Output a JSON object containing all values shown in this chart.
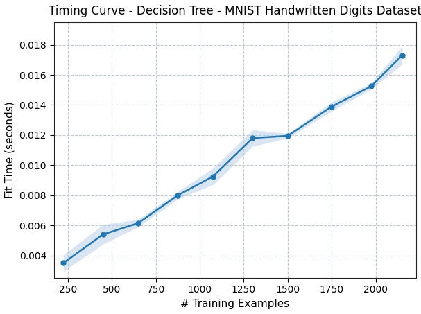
{
  "title": "Timing Curve - Decision Tree - MNIST Handwritten Digits Dataset",
  "xlabel": "# Training Examples",
  "ylabel": "Fit Time (seconds)",
  "x": [
    225,
    450,
    650,
    875,
    1075,
    1300,
    1500,
    1750,
    1975,
    2150
  ],
  "y": [
    0.0035,
    0.0054,
    0.00615,
    0.008,
    0.00925,
    0.0118,
    0.01195,
    0.0139,
    0.01525,
    0.0173
  ],
  "y_err": [
    0.00055,
    0.00065,
    0.00025,
    0.00025,
    0.00055,
    0.00055,
    0.00015,
    0.0003,
    0.0002,
    0.0006
  ],
  "line_color": "#1f77b4",
  "fill_color": "#aec7e8",
  "marker": "o",
  "markersize": 5,
  "linewidth": 1.8,
  "xlim": [
    170,
    2230
  ],
  "ylim": [
    0.0025,
    0.0195
  ],
  "xticks": [
    250,
    500,
    750,
    1000,
    1250,
    1500,
    1750,
    2000
  ],
  "yticks": [
    0.004,
    0.006,
    0.008,
    0.01,
    0.012,
    0.014,
    0.016,
    0.018
  ],
  "grid_linestyle": "--",
  "grid_color": "#c0c8d8",
  "title_fontsize": 12,
  "label_fontsize": 11,
  "tick_fontsize": 10,
  "background_color": "#ffffff",
  "figwidth": 6.07,
  "figheight": 4.53,
  "dpi": 100
}
